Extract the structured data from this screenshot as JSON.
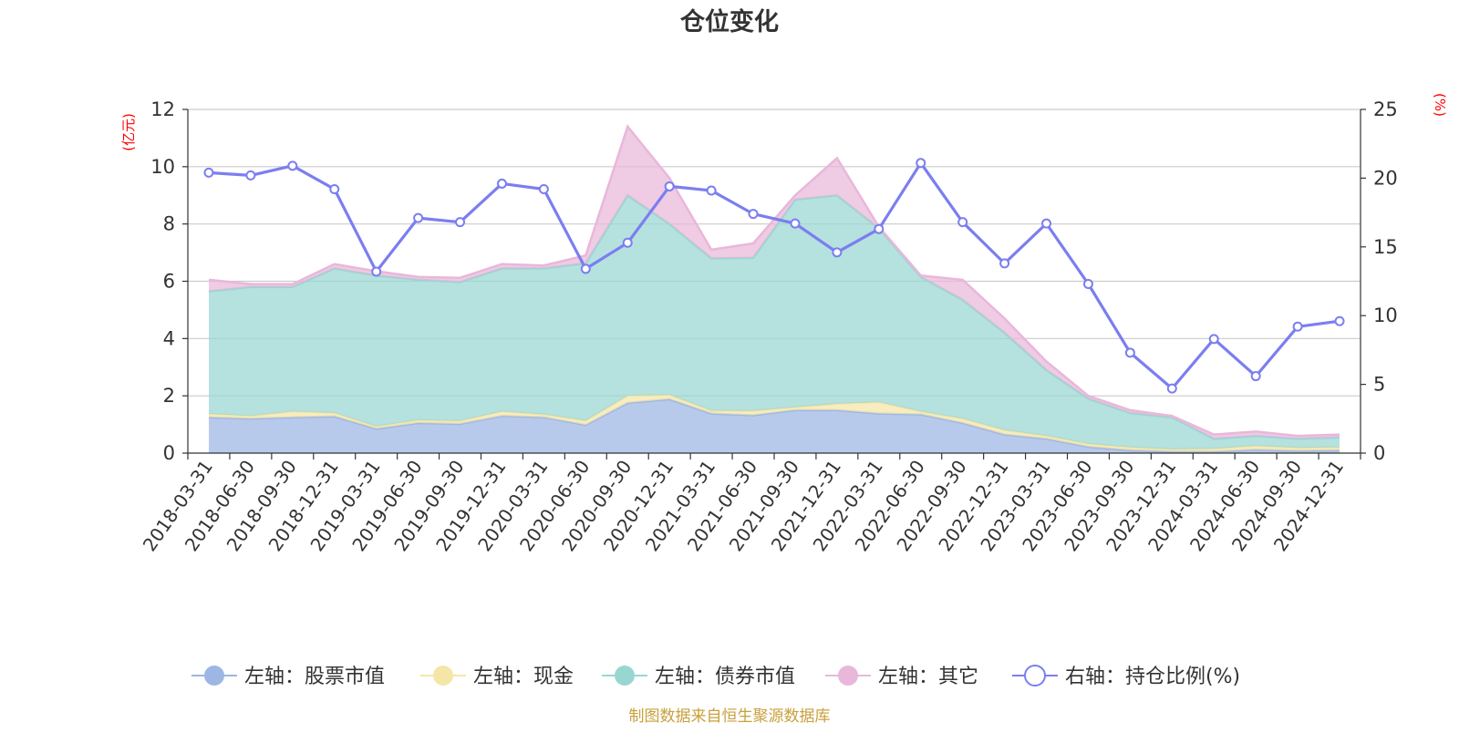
{
  "chart_data": {
    "type": "area",
    "title": "仓位变化",
    "left_axis_unit": "(亿元)",
    "right_axis_unit": "(%)",
    "ylim_left": [
      0,
      12
    ],
    "ylim_right": [
      0,
      25
    ],
    "left_ticks": [
      "0",
      "2",
      "4",
      "6",
      "8",
      "10",
      "12"
    ],
    "right_ticks": [
      "0",
      "5",
      "10",
      "15",
      "20",
      "25"
    ],
    "grid": true,
    "legend_position": "bottom",
    "categories": [
      "2018-03-31",
      "2018-06-30",
      "2018-09-30",
      "2018-12-31",
      "2019-03-31",
      "2019-06-30",
      "2019-09-30",
      "2019-12-31",
      "2020-03-31",
      "2020-06-30",
      "2020-09-30",
      "2020-12-31",
      "2021-03-31",
      "2021-06-30",
      "2021-09-30",
      "2021-12-31",
      "2022-03-31",
      "2022-06-30",
      "2022-09-30",
      "2022-12-31",
      "2023-03-31",
      "2023-06-30",
      "2023-09-30",
      "2023-12-31",
      "2024-03-31",
      "2024-06-30",
      "2024-09-30",
      "2024-12-31"
    ],
    "series": [
      {
        "name": "左轴：股票市值",
        "axis": "left",
        "kind": "stack",
        "color": "#9db6e4",
        "values": [
          1.25,
          1.2,
          1.25,
          1.28,
          0.85,
          1.05,
          1.02,
          1.3,
          1.25,
          0.98,
          1.75,
          1.88,
          1.38,
          1.32,
          1.5,
          1.5,
          1.38,
          1.35,
          1.05,
          0.65,
          0.5,
          0.22,
          0.1,
          0.05,
          0.05,
          0.12,
          0.08,
          0.1
        ]
      },
      {
        "name": "左轴：现金",
        "axis": "left",
        "kind": "stack",
        "color": "#f5e6a8",
        "values": [
          0.12,
          0.1,
          0.2,
          0.12,
          0.08,
          0.1,
          0.1,
          0.15,
          0.1,
          0.15,
          0.25,
          0.15,
          0.1,
          0.15,
          0.1,
          0.22,
          0.4,
          0.1,
          0.15,
          0.15,
          0.1,
          0.1,
          0.1,
          0.08,
          0.1,
          0.13,
          0.1,
          0.1
        ]
      },
      {
        "name": "左轴：债券市值",
        "axis": "left",
        "kind": "stack",
        "color": "#98d6d2",
        "values": [
          4.28,
          4.5,
          4.35,
          5.05,
          5.27,
          4.9,
          4.85,
          5.0,
          5.1,
          5.5,
          7.0,
          5.97,
          5.32,
          5.35,
          7.25,
          7.28,
          6.07,
          4.7,
          4.15,
          3.4,
          2.3,
          1.58,
          1.2,
          1.12,
          0.35,
          0.35,
          0.32,
          0.35
        ]
      },
      {
        "name": "左轴：其它",
        "axis": "left",
        "kind": "stack",
        "color": "#e9b7da",
        "values": [
          0.4,
          0.1,
          0.1,
          0.15,
          0.15,
          0.1,
          0.15,
          0.15,
          0.1,
          0.27,
          2.4,
          1.6,
          0.3,
          0.5,
          0.15,
          1.3,
          0.05,
          0.05,
          0.7,
          0.5,
          0.3,
          0.1,
          0.1,
          0.05,
          0.15,
          0.15,
          0.1,
          0.1
        ]
      },
      {
        "name": "右轴：持仓比例(%)",
        "axis": "right",
        "kind": "line",
        "color": "#7b7ef0",
        "values": [
          20.4,
          20.2,
          20.9,
          19.2,
          13.2,
          17.1,
          16.8,
          19.6,
          19.2,
          13.4,
          15.3,
          19.4,
          19.1,
          17.4,
          16.7,
          14.6,
          16.3,
          21.1,
          16.8,
          13.8,
          16.7,
          12.3,
          7.3,
          4.7,
          8.3,
          5.6,
          9.2,
          9.6
        ]
      }
    ],
    "source_note": "制图数据来自恒生聚源数据库"
  }
}
